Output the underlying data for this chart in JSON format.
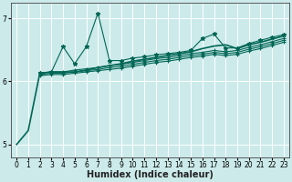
{
  "xlabel": "Humidex (Indice chaleur)",
  "ylabel": "",
  "bg_color": "#cceaea",
  "grid_color": "#ffffff",
  "line_color": "#006655",
  "ylim": [
    4.8,
    7.25
  ],
  "xlim": [
    -0.5,
    23.5
  ],
  "yticks": [
    5,
    6,
    7
  ],
  "xticks": [
    0,
    1,
    2,
    3,
    4,
    5,
    6,
    7,
    8,
    9,
    10,
    11,
    12,
    13,
    14,
    15,
    16,
    17,
    18,
    19,
    20,
    21,
    22,
    23
  ],
  "series": [
    {
      "x": [
        0,
        1,
        2,
        3,
        4,
        5,
        6,
        7,
        8,
        9,
        10,
        11,
        12,
        13,
        14,
        15,
        16,
        17,
        18,
        19,
        20,
        21,
        22,
        23
      ],
      "y": [
        5.0,
        5.22,
        6.13,
        6.15,
        6.15,
        6.15,
        6.18,
        6.22,
        6.25,
        6.28,
        6.32,
        6.35,
        6.38,
        6.41,
        6.44,
        6.47,
        6.52,
        6.56,
        6.58,
        6.52,
        6.58,
        6.62,
        6.67,
        6.72
      ],
      "marker": null,
      "linestyle": "-",
      "lw": 1.2
    },
    {
      "x": [
        2,
        3,
        4,
        5,
        6,
        7,
        8,
        9,
        10,
        11,
        12,
        13,
        14,
        15,
        16,
        17,
        18,
        19,
        20,
        21,
        22,
        23
      ],
      "y": [
        6.13,
        6.15,
        6.55,
        6.28,
        6.55,
        7.08,
        6.33,
        6.33,
        6.37,
        6.39,
        6.42,
        6.44,
        6.46,
        6.49,
        6.68,
        6.75,
        6.53,
        6.53,
        6.6,
        6.65,
        6.7,
        6.74
      ],
      "marker": "*",
      "linestyle": "-",
      "lw": 0.8
    },
    {
      "x": [
        2,
        3,
        4,
        5,
        6,
        7,
        8,
        9,
        10,
        11,
        12,
        13,
        14,
        15,
        16,
        17,
        18,
        19,
        20,
        21,
        22,
        23
      ],
      "y": [
        6.13,
        6.15,
        6.15,
        6.18,
        6.2,
        6.22,
        6.25,
        6.27,
        6.3,
        6.33,
        6.36,
        6.38,
        6.41,
        6.44,
        6.46,
        6.49,
        6.47,
        6.49,
        6.54,
        6.58,
        6.63,
        6.68
      ],
      "marker": "+",
      "linestyle": "-",
      "lw": 0.8
    },
    {
      "x": [
        2,
        3,
        4,
        5,
        6,
        7,
        8,
        9,
        10,
        11,
        12,
        13,
        14,
        15,
        16,
        17,
        18,
        19,
        20,
        21,
        22,
        23
      ],
      "y": [
        6.11,
        6.13,
        6.13,
        6.15,
        6.17,
        6.19,
        6.22,
        6.24,
        6.27,
        6.3,
        6.33,
        6.35,
        6.38,
        6.41,
        6.43,
        6.46,
        6.44,
        6.46,
        6.51,
        6.55,
        6.6,
        6.65
      ],
      "marker": "+",
      "linestyle": "-",
      "lw": 0.8
    },
    {
      "x": [
        2,
        3,
        4,
        5,
        6,
        7,
        8,
        9,
        10,
        11,
        12,
        13,
        14,
        15,
        16,
        17,
        18,
        19,
        20,
        21,
        22,
        23
      ],
      "y": [
        6.09,
        6.11,
        6.11,
        6.13,
        6.15,
        6.17,
        6.19,
        6.21,
        6.24,
        6.27,
        6.3,
        6.32,
        6.35,
        6.38,
        6.4,
        6.43,
        6.41,
        6.43,
        6.48,
        6.52,
        6.57,
        6.62
      ],
      "marker": "+",
      "linestyle": "-",
      "lw": 0.8
    }
  ],
  "xlabel_fontsize": 7,
  "xlabel_fontweight": "bold",
  "tick_fontsize": 5.5
}
